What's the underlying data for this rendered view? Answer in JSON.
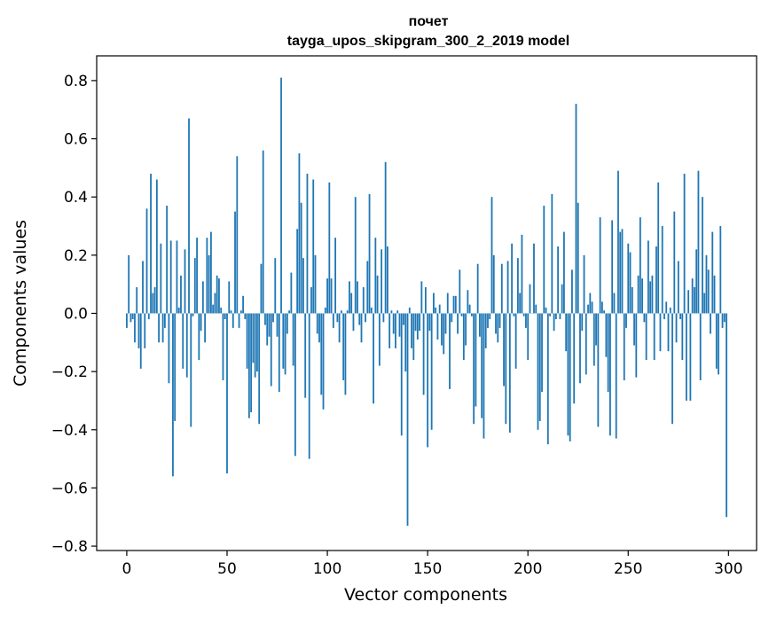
{
  "chart_data": {
    "type": "bar",
    "title": "почет",
    "subtitle": "tayga_upos_skipgram_300_2_2019 model",
    "xlabel": "Vector components",
    "ylabel": "Components values",
    "xlim": [
      -15,
      314
    ],
    "ylim": [
      -0.815,
      0.885
    ],
    "xticks": [
      0,
      50,
      100,
      150,
      200,
      250,
      300
    ],
    "yticks": [
      -0.8,
      -0.6,
      -0.4,
      -0.2,
      0.0,
      0.2,
      0.4,
      0.6,
      0.8
    ],
    "ytick_labels": [
      "−0.8",
      "−0.6",
      "−0.4",
      "−0.2",
      "0.0",
      "0.2",
      "0.4",
      "0.6",
      "0.8"
    ],
    "bar_color": "#1f77b4",
    "grid": false,
    "x": "indices 0..299",
    "values": [
      -0.05,
      0.2,
      -0.03,
      -0.02,
      -0.1,
      0.09,
      -0.12,
      -0.19,
      0.18,
      -0.12,
      0.36,
      -0.02,
      0.48,
      0.07,
      0.09,
      0.46,
      -0.1,
      0.24,
      -0.1,
      -0.05,
      0.37,
      -0.24,
      0.25,
      -0.56,
      -0.37,
      0.25,
      0.02,
      0.13,
      -0.19,
      0.22,
      -0.22,
      0.67,
      -0.39,
      -0.01,
      0.19,
      0.26,
      -0.16,
      -0.06,
      0.11,
      -0.1,
      0.26,
      0.2,
      0.28,
      0.03,
      0.07,
      0.13,
      0.12,
      0.02,
      -0.23,
      -0.02,
      -0.55,
      0.11,
      0.01,
      -0.05,
      0.35,
      0.54,
      -0.05,
      0.01,
      0.06,
      -0.02,
      -0.19,
      -0.36,
      -0.34,
      -0.17,
      -0.22,
      -0.2,
      -0.38,
      0.17,
      0.56,
      -0.04,
      -0.11,
      -0.08,
      -0.25,
      -0.03,
      0.19,
      -0.08,
      -0.27,
      0.81,
      -0.19,
      -0.21,
      -0.07,
      0.01,
      0.14,
      -0.18,
      -0.49,
      0.29,
      0.55,
      0.38,
      0.19,
      -0.29,
      0.48,
      -0.5,
      0.09,
      0.46,
      0.2,
      -0.07,
      -0.1,
      -0.28,
      -0.33,
      0.02,
      0.12,
      0.45,
      0.12,
      -0.05,
      0.26,
      -0.03,
      -0.1,
      0.01,
      -0.23,
      -0.28,
      0.01,
      0.11,
      0.07,
      -0.06,
      0.4,
      0.11,
      -0.04,
      -0.1,
      0.09,
      -0.03,
      0.18,
      0.41,
      0.02,
      -0.31,
      0.26,
      0.13,
      -0.18,
      0.22,
      -0.03,
      0.52,
      0.23,
      -0.12,
      0.01,
      -0.07,
      -0.12,
      0.01,
      -0.08,
      -0.42,
      -0.04,
      -0.2,
      -0.73,
      0.02,
      -0.12,
      -0.16,
      -0.06,
      -0.09,
      -0.06,
      0.11,
      -0.28,
      0.09,
      -0.46,
      -0.06,
      -0.4,
      0.07,
      0.02,
      -0.09,
      0.03,
      -0.11,
      -0.14,
      -0.07,
      0.07,
      -0.26,
      -0.03,
      0.06,
      0.06,
      -0.07,
      0.15,
      -0.01,
      -0.16,
      -0.11,
      0.08,
      0.03,
      -0.01,
      -0.38,
      -0.32,
      0.17,
      -0.08,
      -0.36,
      -0.43,
      -0.12,
      -0.05,
      -0.02,
      0.4,
      0.2,
      -0.07,
      -0.1,
      -0.05,
      0.17,
      -0.25,
      -0.38,
      0.18,
      -0.41,
      0.24,
      -0.01,
      -0.19,
      0.19,
      0.07,
      0.27,
      -0.01,
      -0.05,
      -0.16,
      0.1,
      0.0,
      0.24,
      0.03,
      -0.4,
      -0.37,
      -0.27,
      0.37,
      0.02,
      -0.45,
      -0.01,
      0.41,
      -0.06,
      -0.02,
      0.23,
      -0.02,
      0.1,
      0.28,
      -0.13,
      -0.42,
      -0.44,
      0.15,
      -0.31,
      0.72,
      0.38,
      -0.24,
      -0.06,
      0.2,
      -0.21,
      0.03,
      0.07,
      0.04,
      -0.18,
      -0.11,
      -0.39,
      0.33,
      0.04,
      0.01,
      -0.15,
      -0.27,
      -0.42,
      0.32,
      0.07,
      -0.43,
      0.49,
      0.28,
      0.29,
      -0.23,
      -0.05,
      0.24,
      0.21,
      0.09,
      -0.11,
      -0.22,
      0.13,
      0.33,
      0.12,
      -0.03,
      -0.16,
      0.25,
      0.11,
      0.13,
      -0.16,
      0.23,
      0.45,
      -0.13,
      0.3,
      -0.02,
      0.04,
      -0.13,
      0.02,
      -0.38,
      0.35,
      -0.1,
      0.18,
      -0.02,
      -0.16,
      0.48,
      -0.3,
      0.08,
      -0.3,
      0.12,
      0.09,
      0.22,
      0.49,
      -0.23,
      0.4,
      0.07,
      0.2,
      0.15,
      -0.07,
      0.28,
      0.13,
      -0.19,
      -0.21,
      0.3,
      -0.05,
      -0.03,
      -0.7
    ]
  }
}
